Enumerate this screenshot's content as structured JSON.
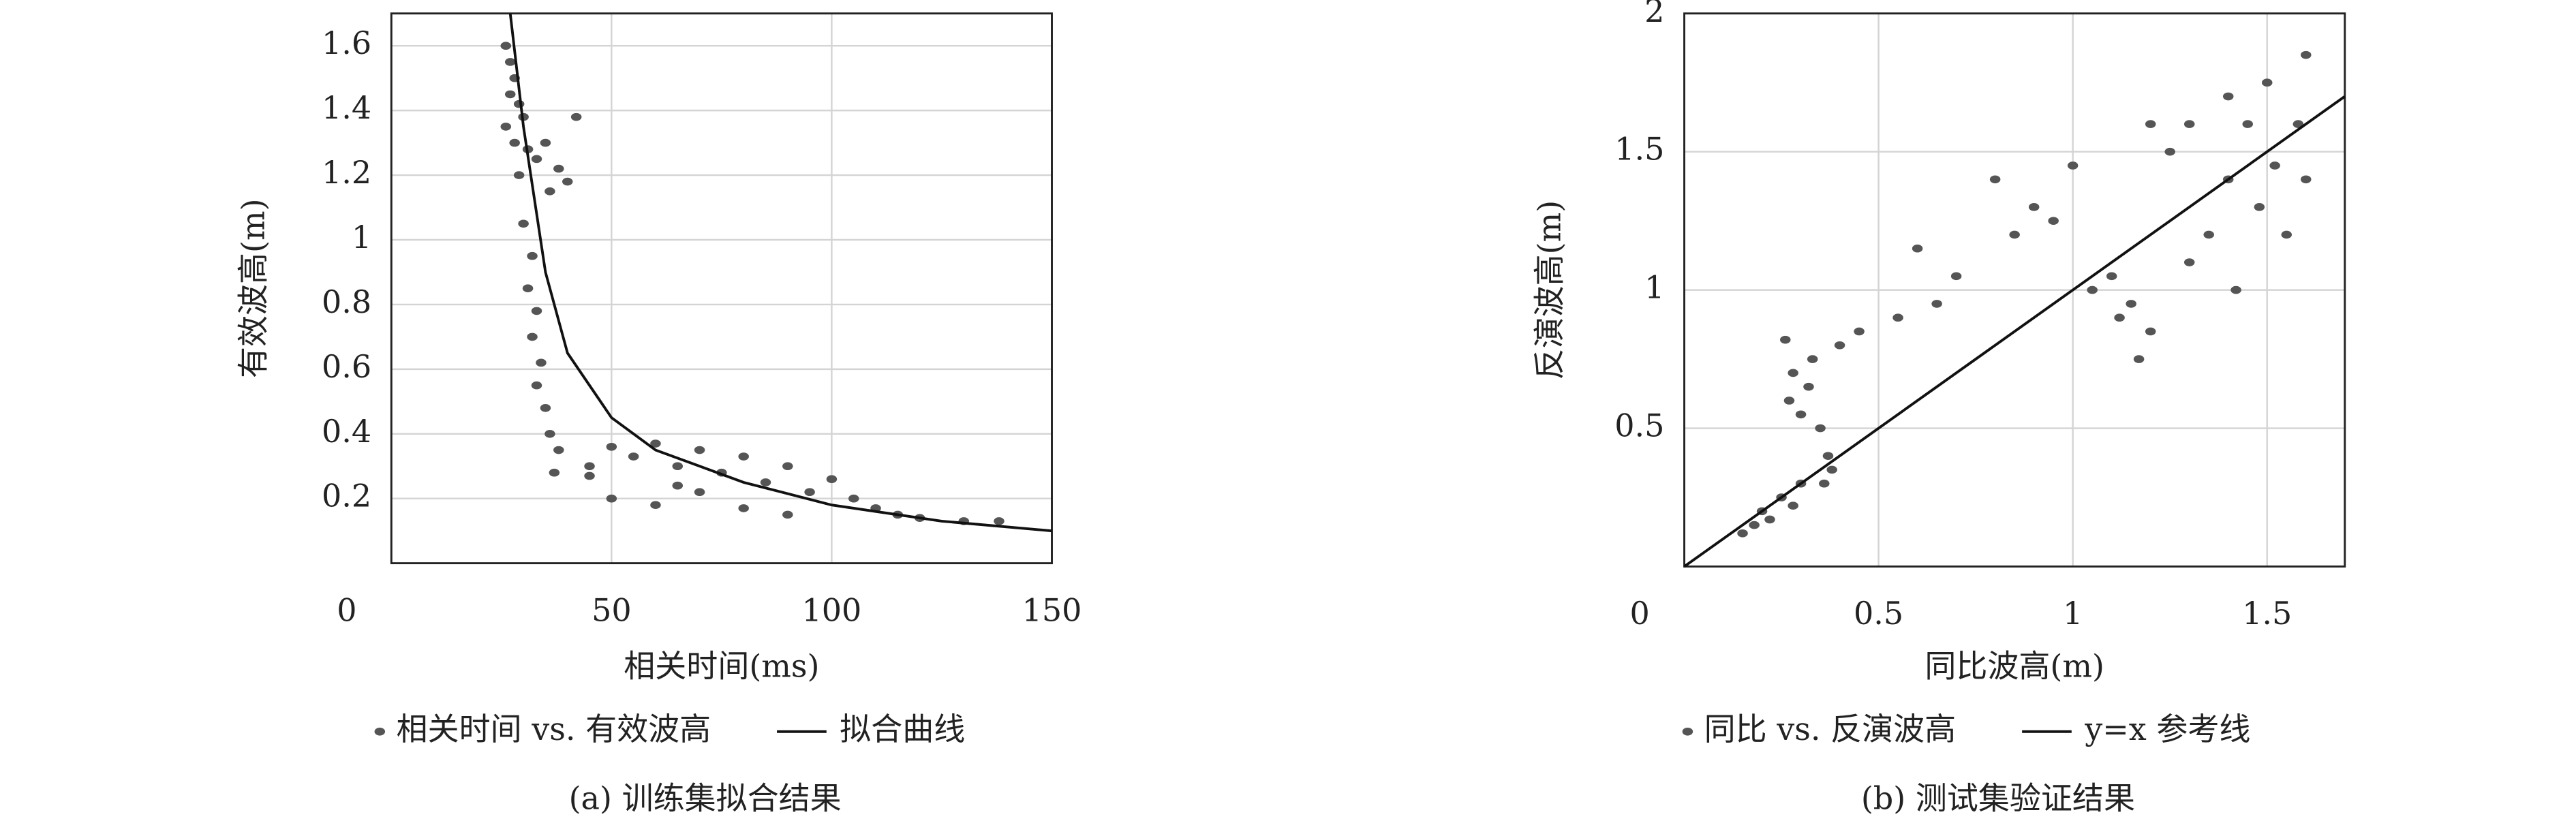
{
  "chart_data": [
    {
      "type": "scatter",
      "x_label": "相关时间(ms)",
      "y_label": "有效波高(m)",
      "caption": "(a) 训练集拟合结果",
      "xlim": [
        0,
        150
      ],
      "ylim": [
        0,
        1.7
      ],
      "xticks": [
        0,
        50,
        100,
        150
      ],
      "yticks": [
        0.2,
        0.4,
        0.6,
        0.8,
        1.0,
        1.2,
        1.4,
        1.6
      ],
      "grid": true,
      "series": [
        {
          "name": "相关时间 vs. 有效波高",
          "color": "#555555",
          "style": "dot",
          "x": [
            26,
            27,
            28,
            27,
            29,
            30,
            26,
            28,
            31,
            33,
            35,
            38,
            40,
            42,
            36,
            29,
            30,
            32,
            31,
            33,
            32,
            34,
            33,
            35,
            36,
            38,
            37,
            45,
            50,
            55,
            60,
            65,
            70,
            75,
            80,
            85,
            90,
            95,
            100,
            105,
            110,
            115,
            120,
            130,
            138,
            50,
            60,
            70,
            80,
            90,
            45,
            65
          ],
          "values": [
            1.6,
            1.55,
            1.5,
            1.45,
            1.42,
            1.38,
            1.35,
            1.3,
            1.28,
            1.25,
            1.3,
            1.22,
            1.18,
            1.38,
            1.15,
            1.2,
            1.05,
            0.95,
            0.85,
            0.78,
            0.7,
            0.62,
            0.55,
            0.48,
            0.4,
            0.35,
            0.28,
            0.3,
            0.36,
            0.33,
            0.37,
            0.3,
            0.35,
            0.28,
            0.33,
            0.25,
            0.3,
            0.22,
            0.26,
            0.2,
            0.17,
            0.15,
            0.14,
            0.13,
            0.13,
            0.2,
            0.18,
            0.22,
            0.17,
            0.15,
            0.27,
            0.24
          ]
        },
        {
          "name": "拟合曲线",
          "color": "#111111",
          "style": "line",
          "x": [
            27,
            30,
            35,
            40,
            50,
            60,
            80,
            100,
            125,
            150
          ],
          "values": [
            1.7,
            1.35,
            0.9,
            0.65,
            0.45,
            0.35,
            0.25,
            0.18,
            0.13,
            0.1
          ]
        }
      ]
    },
    {
      "type": "scatter",
      "x_label": "同比波高(m)",
      "y_label": "反演波高(m)",
      "caption": "(b) 测试集验证结果",
      "xlim": [
        0,
        1.7
      ],
      "ylim": [
        0,
        2.0
      ],
      "xticks": [
        0,
        0.5,
        1.0,
        1.5
      ],
      "yticks": [
        0.5,
        1.0,
        1.5,
        2.0
      ],
      "grid": true,
      "series": [
        {
          "name": "同比 vs. 反演波高",
          "color": "#555555",
          "style": "dot",
          "x": [
            0.15,
            0.18,
            0.2,
            0.22,
            0.25,
            0.28,
            0.3,
            0.27,
            0.28,
            0.3,
            0.26,
            0.32,
            0.35,
            0.37,
            0.33,
            0.36,
            0.38,
            0.4,
            0.45,
            0.55,
            0.6,
            0.65,
            0.7,
            0.8,
            0.85,
            0.9,
            0.95,
            1.0,
            1.05,
            1.1,
            1.12,
            1.15,
            1.17,
            1.2,
            1.2,
            1.25,
            1.3,
            1.35,
            1.4,
            1.42,
            1.45,
            1.48,
            1.5,
            1.52,
            1.55,
            1.58,
            1.6,
            1.6,
            1.4,
            1.3
          ],
          "values": [
            0.12,
            0.15,
            0.2,
            0.17,
            0.25,
            0.22,
            0.3,
            0.6,
            0.7,
            0.55,
            0.82,
            0.65,
            0.5,
            0.4,
            0.75,
            0.3,
            0.35,
            0.8,
            0.85,
            0.9,
            1.15,
            0.95,
            1.05,
            1.4,
            1.2,
            1.3,
            1.25,
            1.45,
            1.0,
            1.05,
            0.9,
            0.95,
            0.75,
            0.85,
            1.6,
            1.5,
            1.1,
            1.2,
            1.4,
            1.0,
            1.6,
            1.3,
            1.75,
            1.45,
            1.2,
            1.6,
            1.4,
            1.85,
            1.7,
            1.6
          ]
        },
        {
          "name": "y=x 参考线",
          "color": "#111111",
          "style": "line",
          "x": [
            0,
            1.7
          ],
          "values": [
            0,
            1.7
          ]
        }
      ]
    }
  ]
}
